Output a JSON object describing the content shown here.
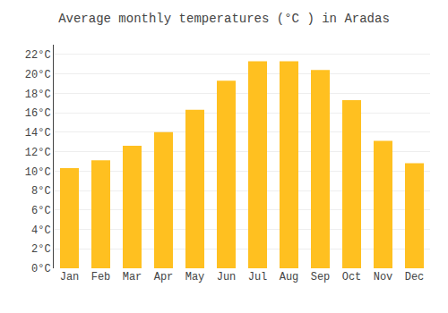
{
  "chart_data": {
    "type": "bar",
    "title": "Average monthly temperatures (°C ) in Aradas",
    "categories": [
      "Jan",
      "Feb",
      "Mar",
      "Apr",
      "May",
      "Jun",
      "Jul",
      "Aug",
      "Sep",
      "Oct",
      "Nov",
      "Dec"
    ],
    "values": [
      10.3,
      11.1,
      12.6,
      14.0,
      16.3,
      19.3,
      21.3,
      21.3,
      20.4,
      17.3,
      13.1,
      10.8
    ],
    "color": "#FFC020",
    "ylim": [
      0,
      23
    ],
    "yticks": [
      {
        "value": 0,
        "label": "0°C"
      },
      {
        "value": 2,
        "label": "2°C"
      },
      {
        "value": 4,
        "label": "4°C"
      },
      {
        "value": 6,
        "label": "6°C"
      },
      {
        "value": 8,
        "label": "8°C"
      },
      {
        "value": 10,
        "label": "10°C"
      },
      {
        "value": 12,
        "label": "12°C"
      },
      {
        "value": 14,
        "label": "14°C"
      },
      {
        "value": 16,
        "label": "16°C"
      },
      {
        "value": 18,
        "label": "18°C"
      },
      {
        "value": 20,
        "label": "20°C"
      },
      {
        "value": 22,
        "label": "22°C"
      }
    ],
    "grid": true
  }
}
